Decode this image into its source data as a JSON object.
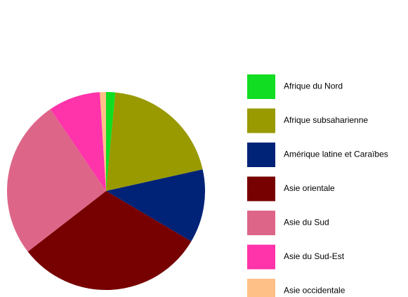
{
  "chart_data": {
    "type": "pie",
    "categories": [
      "Afrique du Nord",
      "Afrique subsaharienne",
      "Amérique latine et Caraïbes",
      "Asie orientale",
      "Asie du Sud",
      "Asie du Sud-Est",
      "Asie occidentale"
    ],
    "values": [
      1.5,
      20,
      12,
      31,
      26,
      8.5,
      1
    ],
    "colors": [
      "#11dd22",
      "#999900",
      "#002277",
      "#770000",
      "#dd6688",
      "#ff33aa",
      "#ffc088"
    ],
    "legend": "right"
  }
}
